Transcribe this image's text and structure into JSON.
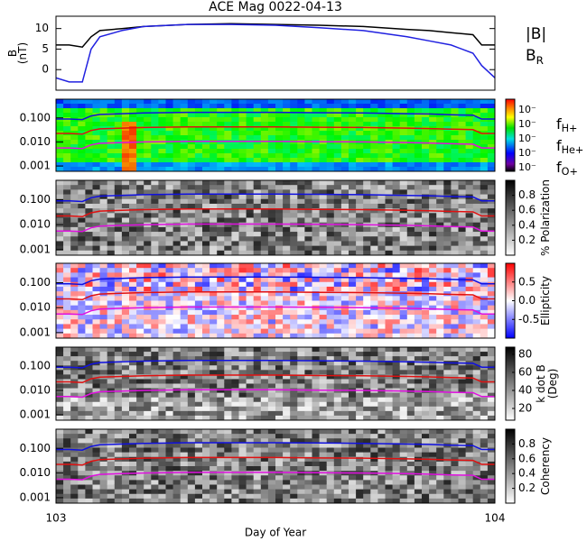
{
  "chart_data": [
    {
      "type": "line",
      "title": "ACE Mag 0022-04-13",
      "ylabel": "B",
      "ylabel_unit": "(nT)",
      "xlim": [
        103,
        104
      ],
      "ylim": [
        -5,
        13
      ],
      "yticks": [
        0,
        5,
        10
      ],
      "x": [
        103,
        103.03,
        103.06,
        103.08,
        103.1,
        103.15,
        103.2,
        103.3,
        103.4,
        103.5,
        103.6,
        103.7,
        103.8,
        103.85,
        103.9,
        103.95,
        103.97,
        104
      ],
      "series": [
        {
          "name": "|B|",
          "color": "#000000",
          "values": [
            6,
            6,
            5.5,
            8,
            9.5,
            10,
            10.5,
            11,
            11.2,
            11,
            10.8,
            10.5,
            9.8,
            9.5,
            9,
            8.5,
            6,
            6
          ]
        },
        {
          "name": "B",
          "sub": "R",
          "color": "#2020e0",
          "values": [
            -2,
            -3,
            -3,
            5,
            8,
            9.5,
            10.5,
            11,
            11,
            10.8,
            10.2,
            9.5,
            8,
            7,
            6,
            4,
            1,
            -2
          ]
        }
      ]
    },
    {
      "type": "spectrogram",
      "cmap": "rainbow",
      "log": true,
      "xlim": [
        103,
        104
      ],
      "ylim": [
        0.0006,
        0.6
      ],
      "yticks": [
        {
          "value": 0.001,
          "label": "0.001"
        },
        {
          "value": 0.01,
          "label": "0.010"
        },
        {
          "value": 0.1,
          "label": "0.100"
        }
      ],
      "cbar_tick_labels": [
        "10⁻",
        "10⁻",
        "10⁻",
        "10⁻",
        "10⁻"
      ],
      "x": [
        103,
        103.03,
        103.06,
        103.08,
        103.1,
        103.15,
        103.2,
        103.3,
        103.4,
        103.5,
        103.6,
        103.7,
        103.8,
        103.85,
        103.9,
        103.95,
        103.97,
        104
      ],
      "series": [
        {
          "name": "f",
          "sub": "H+",
          "color": "#1010e0",
          "values": [
            0.09,
            0.09,
            0.085,
            0.12,
            0.14,
            0.15,
            0.16,
            0.17,
            0.17,
            0.17,
            0.165,
            0.16,
            0.15,
            0.145,
            0.135,
            0.13,
            0.09,
            0.09
          ]
        },
        {
          "name": "f",
          "sub": "He+",
          "color": "#e01010",
          "values": [
            0.0225,
            0.0225,
            0.021,
            0.03,
            0.035,
            0.0375,
            0.04,
            0.0425,
            0.0425,
            0.0425,
            0.041,
            0.04,
            0.0375,
            0.036,
            0.034,
            0.0325,
            0.0225,
            0.0225
          ]
        },
        {
          "name": "f",
          "sub": "O+",
          "color": "#e010e0",
          "values": [
            0.0056,
            0.0056,
            0.0053,
            0.0075,
            0.0088,
            0.0094,
            0.01,
            0.0106,
            0.0106,
            0.0106,
            0.0103,
            0.01,
            0.0094,
            0.009,
            0.0084,
            0.0081,
            0.0056,
            0.0056
          ]
        }
      ]
    },
    {
      "type": "spectrogram",
      "cmap": "gray",
      "log": true,
      "xlim": [
        103,
        104
      ],
      "ylim": [
        0.0006,
        0.6
      ],
      "yticks": [
        {
          "value": 0.001,
          "label": "0.001"
        },
        {
          "value": 0.01,
          "label": "0.010"
        },
        {
          "value": 0.1,
          "label": "0.100"
        }
      ],
      "cbar_lim": [
        0,
        1
      ],
      "cbar_ticks": [
        0.2,
        0.4,
        0.6,
        0.8
      ],
      "cbar_label": "% Polarization"
    },
    {
      "type": "spectrogram",
      "cmap": "bwr",
      "log": true,
      "xlim": [
        103,
        104
      ],
      "ylim": [
        0.0006,
        0.6
      ],
      "yticks": [
        {
          "value": 0.001,
          "label": "0.001"
        },
        {
          "value": 0.01,
          "label": "0.010"
        },
        {
          "value": 0.1,
          "label": "0.100"
        }
      ],
      "cbar_lim": [
        -1,
        1
      ],
      "cbar_ticks": [
        -0.5,
        {
          "value": 0,
          "label": "0.0"
        },
        0.5
      ],
      "cbar_label": "Ellipticity"
    },
    {
      "type": "spectrogram",
      "cmap": "gray",
      "log": true,
      "xlim": [
        103,
        104
      ],
      "ylim": [
        0.0006,
        0.6
      ],
      "yticks": [
        {
          "value": 0.001,
          "label": "0.001"
        },
        {
          "value": 0.01,
          "label": "0.010"
        },
        {
          "value": 0.1,
          "label": "0.100"
        }
      ],
      "cbar_lim": [
        7,
        88
      ],
      "cbar_ticks": [
        20,
        40,
        60,
        80
      ],
      "cbar_label": "k dot B",
      "cbar_label_unit": "(Deg)"
    },
    {
      "type": "spectrogram",
      "cmap": "gray",
      "log": true,
      "xlim": [
        103,
        104
      ],
      "ylim": [
        0.0006,
        0.6
      ],
      "yticks": [
        {
          "value": 0.001,
          "label": "0.001"
        },
        {
          "value": 0.01,
          "label": "0.010"
        },
        {
          "value": 0.1,
          "label": "0.100"
        }
      ],
      "cbar_lim": [
        0,
        1
      ],
      "cbar_ticks": [
        0.2,
        0.4,
        0.6,
        0.8
      ],
      "cbar_label": "Coherency",
      "xticks": [
        103,
        104
      ],
      "xlabel": "Day of Year"
    }
  ]
}
